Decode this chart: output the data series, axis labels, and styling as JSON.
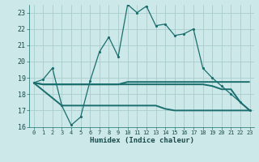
{
  "title": "",
  "xlabel": "Humidex (Indice chaleur)",
  "background_color": "#cce8e8",
  "grid_color": "#aacccc",
  "line_color": "#1a6e6e",
  "xlim": [
    -0.5,
    23.5
  ],
  "ylim": [
    16,
    23.5
  ],
  "xticks": [
    0,
    1,
    2,
    3,
    4,
    5,
    6,
    7,
    8,
    9,
    10,
    11,
    12,
    13,
    14,
    15,
    16,
    17,
    18,
    19,
    20,
    21,
    22,
    23
  ],
  "yticks": [
    16,
    17,
    18,
    19,
    20,
    21,
    22,
    23
  ],
  "main_line": {
    "x": [
      0,
      1,
      2,
      3,
      4,
      5,
      6,
      7,
      8,
      9,
      10,
      11,
      12,
      13,
      14,
      15,
      16,
      17,
      18,
      19,
      20,
      21,
      22,
      23
    ],
    "y": [
      18.7,
      18.9,
      19.6,
      17.3,
      16.1,
      16.6,
      18.8,
      20.6,
      21.5,
      20.3,
      23.5,
      23.0,
      23.4,
      22.2,
      22.3,
      21.6,
      21.7,
      22.0,
      19.6,
      19.0,
      18.5,
      18.0,
      17.5,
      17.0
    ]
  },
  "ref_line1": {
    "x": [
      0,
      1,
      3,
      4,
      5,
      6,
      7,
      8,
      9,
      10,
      11,
      12,
      13,
      14,
      15,
      16,
      17,
      18,
      19,
      20,
      21,
      22,
      23
    ],
    "y": [
      18.7,
      18.6,
      18.6,
      18.6,
      18.6,
      18.6,
      18.6,
      18.6,
      18.6,
      18.75,
      18.75,
      18.75,
      18.75,
      18.75,
      18.75,
      18.75,
      18.75,
      18.75,
      18.75,
      18.75,
      18.75,
      18.75,
      18.75
    ]
  },
  "ref_line2": {
    "x": [
      0,
      1,
      3,
      4,
      5,
      6,
      7,
      8,
      9,
      10,
      11,
      12,
      13,
      14,
      15,
      16,
      17,
      18,
      19,
      20,
      21,
      22,
      23
    ],
    "y": [
      18.7,
      18.6,
      18.6,
      18.6,
      18.6,
      18.6,
      18.6,
      18.6,
      18.6,
      18.6,
      18.6,
      18.6,
      18.6,
      18.6,
      18.6,
      18.6,
      18.6,
      18.6,
      18.5,
      18.3,
      18.3,
      17.5,
      17.0
    ]
  },
  "ref_line3": {
    "x": [
      0,
      3,
      4,
      5,
      6,
      7,
      8,
      9,
      10,
      11,
      12,
      13,
      14,
      15,
      16,
      17,
      18,
      19,
      20,
      21,
      22,
      23
    ],
    "y": [
      18.7,
      17.3,
      17.3,
      17.3,
      17.3,
      17.3,
      17.3,
      17.3,
      17.3,
      17.3,
      17.3,
      17.3,
      17.1,
      17.0,
      17.0,
      17.0,
      17.0,
      17.0,
      17.0,
      17.0,
      17.0,
      17.0
    ]
  }
}
